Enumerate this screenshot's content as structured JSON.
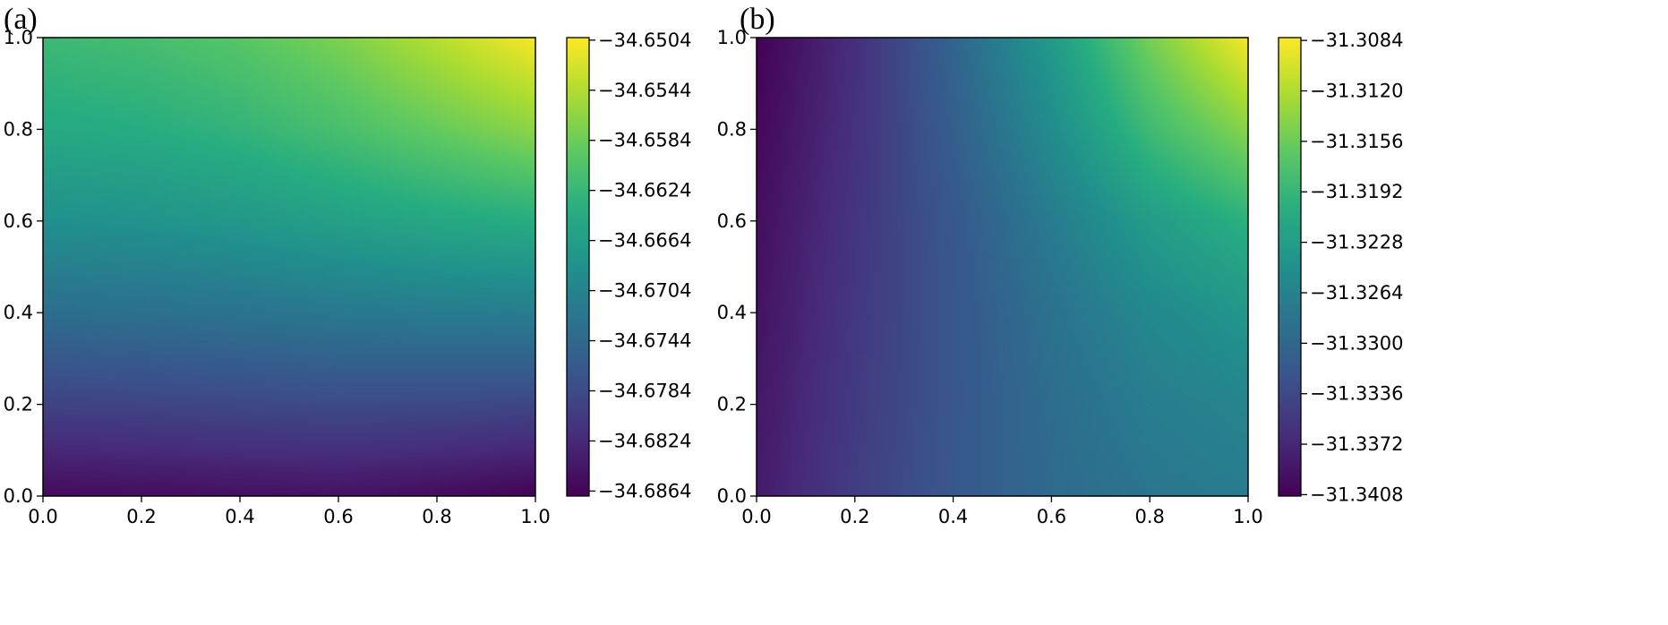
{
  "chart_data": [
    {
      "type": "heatmap",
      "panel_label": "(a)",
      "colormap": "viridis",
      "xlim": [
        0.0,
        1.0
      ],
      "ylim": [
        0.0,
        1.0
      ],
      "xticks": [
        "0.0",
        "0.2",
        "0.4",
        "0.6",
        "0.8",
        "1.0"
      ],
      "yticks": [
        "0.0",
        "0.2",
        "0.4",
        "0.6",
        "0.8",
        "1.0"
      ],
      "x": [
        0.0,
        0.2,
        0.4,
        0.6,
        0.8,
        1.0
      ],
      "y": [
        0.0,
        0.2,
        0.4,
        0.6,
        0.8,
        1.0
      ],
      "z": [
        [
          -34.6858,
          -34.6855,
          -34.6852,
          -34.685,
          -34.6856,
          -34.6866
        ],
        [
          -34.6795,
          -34.6792,
          -34.6788,
          -34.6784,
          -34.6786,
          -34.679
        ],
        [
          -34.6735,
          -34.6732,
          -34.6727,
          -34.672,
          -34.6715,
          -34.6712
        ],
        [
          -34.6685,
          -34.668,
          -34.6672,
          -34.666,
          -34.6648,
          -34.664
        ],
        [
          -34.6645,
          -34.664,
          -34.6628,
          -34.661,
          -34.6588,
          -34.6565
        ],
        [
          -34.662,
          -34.6612,
          -34.6598,
          -34.6575,
          -34.654,
          -34.6504
        ]
      ],
      "colorbar": {
        "min": -34.6868,
        "max": -34.6502,
        "ticks": [
          -34.6864,
          -34.6824,
          -34.6784,
          -34.6744,
          -34.6704,
          -34.6664,
          -34.6624,
          -34.6584,
          -34.6544,
          -34.6504
        ],
        "tick_labels": [
          "−34.6864",
          "−34.6824",
          "−34.6784",
          "−34.6744",
          "−34.6704",
          "−34.6664",
          "−34.6624",
          "−34.6584",
          "−34.6544",
          "−34.6504"
        ]
      }
    },
    {
      "type": "heatmap",
      "panel_label": "(b)",
      "colormap": "viridis",
      "xlim": [
        0.0,
        1.0
      ],
      "ylim": [
        0.0,
        1.0
      ],
      "xticks": [
        "0.0",
        "0.2",
        "0.4",
        "0.6",
        "0.8",
        "1.0"
      ],
      "yticks": [
        "0.0",
        "0.2",
        "0.4",
        "0.6",
        "0.8",
        "1.0"
      ],
      "x": [
        0.0,
        0.2,
        0.4,
        0.6,
        0.8,
        1.0
      ],
      "y": [
        0.0,
        0.2,
        0.4,
        0.6,
        0.8,
        1.0
      ],
      "z": [
        [
          -31.3385,
          -31.3348,
          -31.3318,
          -31.3295,
          -31.328,
          -31.3272
        ],
        [
          -31.3388,
          -31.3352,
          -31.332,
          -31.3292,
          -31.327,
          -31.326
        ],
        [
          -31.3392,
          -31.3355,
          -31.332,
          -31.3285,
          -31.3255,
          -31.3235
        ],
        [
          -31.3396,
          -31.3358,
          -31.3318,
          -31.3272,
          -31.3228,
          -31.32
        ],
        [
          -31.3402,
          -31.3362,
          -31.331,
          -31.325,
          -31.3185,
          -31.314
        ],
        [
          -31.3408,
          -31.3365,
          -31.3302,
          -31.323,
          -31.315,
          -31.3084
        ]
      ],
      "colorbar": {
        "min": -31.3409,
        "max": -31.3082,
        "ticks": [
          -31.3408,
          -31.3372,
          -31.3336,
          -31.33,
          -31.3264,
          -31.3228,
          -31.3192,
          -31.3156,
          -31.312,
          -31.3084
        ],
        "tick_labels": [
          "−31.3408",
          "−31.3372",
          "−31.3336",
          "−31.3300",
          "−31.3264",
          "−31.3228",
          "−31.3192",
          "−31.3156",
          "−31.3120",
          "−31.3084"
        ]
      }
    }
  ]
}
